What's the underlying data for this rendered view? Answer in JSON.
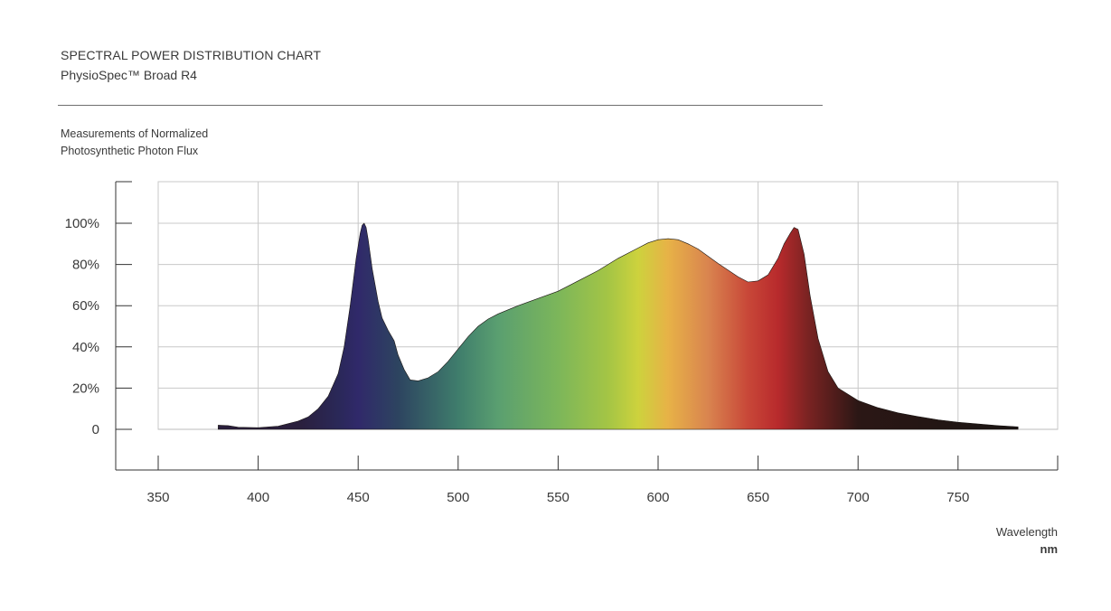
{
  "header": {
    "title": "SPECTRAL POWER DISTRIBUTION CHART",
    "subtitle": "PhysioSpec™ Broad R4"
  },
  "chart_data": {
    "type": "area",
    "title": "SPECTRAL POWER DISTRIBUTION CHART",
    "subtitle": "PhysioSpec™ Broad R4",
    "ylabel_lines": [
      "Measurements of Normalized",
      "Photosynthetic Photon Flux"
    ],
    "xlabel": "Wavelength",
    "xunit": "nm",
    "xlim": [
      350,
      800
    ],
    "ylim": [
      -20,
      120
    ],
    "x_ticks": [
      350,
      400,
      450,
      500,
      550,
      600,
      650,
      700,
      750
    ],
    "x_tick_labels": [
      "350",
      "400",
      "450",
      "500",
      "550",
      "600",
      "650",
      "700",
      "750"
    ],
    "y_ticks": [
      0,
      20,
      40,
      60,
      80,
      100
    ],
    "y_tick_labels": [
      "0",
      "20%",
      "40%",
      "60%",
      "80%",
      "100%"
    ],
    "grid": true,
    "fill": "visible-spectrum gradient",
    "series": [
      {
        "x": [
          380,
          385,
          390,
          400,
          410,
          420,
          425,
          430,
          435,
          440,
          443,
          446,
          449,
          451,
          452,
          453,
          454,
          455,
          457,
          460,
          462,
          465,
          468,
          470,
          473,
          476,
          480,
          485,
          490,
          495,
          500,
          505,
          510,
          515,
          520,
          530,
          540,
          550,
          560,
          570,
          580,
          590,
          595,
          600,
          605,
          610,
          615,
          620,
          630,
          640,
          645,
          650,
          655,
          660,
          663,
          666,
          668,
          670,
          673,
          676,
          680,
          685,
          690,
          700,
          710,
          720,
          730,
          740,
          750,
          760,
          770,
          780
        ],
        "y": [
          2,
          1.8,
          1,
          0.8,
          1.5,
          4,
          6,
          10,
          16,
          27,
          40,
          60,
          83,
          95,
          99,
          100,
          98,
          92,
          78,
          62,
          54,
          48,
          43,
          36,
          29,
          24,
          23.5,
          25,
          28,
          33,
          39,
          45,
          50,
          53.5,
          56,
          60,
          63.5,
          67,
          72,
          77,
          83,
          88,
          90.5,
          92,
          92.5,
          92,
          90,
          87.5,
          80.5,
          74,
          71.5,
          72,
          75,
          83,
          90,
          95,
          98,
          97,
          85,
          65,
          44,
          28,
          20,
          14,
          10.5,
          8,
          6.2,
          4.6,
          3.4,
          2.6,
          1.8,
          1.2
        ]
      }
    ],
    "spectrum_colors": [
      {
        "nm": 420,
        "color": "#2a1f3c"
      },
      {
        "nm": 440,
        "color": "#2a2858"
      },
      {
        "nm": 450,
        "color": "#30296a"
      },
      {
        "nm": 470,
        "color": "#2d4460"
      },
      {
        "nm": 500,
        "color": "#3f7d6c"
      },
      {
        "nm": 520,
        "color": "#5a9f70"
      },
      {
        "nm": 550,
        "color": "#7cb65a"
      },
      {
        "nm": 575,
        "color": "#a4c545"
      },
      {
        "nm": 590,
        "color": "#cdd23d"
      },
      {
        "nm": 605,
        "color": "#e7b247"
      },
      {
        "nm": 625,
        "color": "#d9844f"
      },
      {
        "nm": 645,
        "color": "#c84738"
      },
      {
        "nm": 660,
        "color": "#b82a2c"
      },
      {
        "nm": 675,
        "color": "#7a2322"
      },
      {
        "nm": 700,
        "color": "#2b1715"
      },
      {
        "nm": 780,
        "color": "#1a1513"
      }
    ]
  }
}
